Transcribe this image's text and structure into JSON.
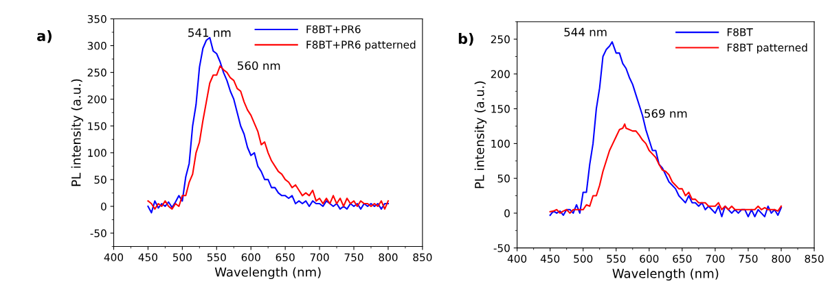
{
  "chart_data": [
    {
      "type": "line",
      "xlabel": "Wavelength (nm)",
      "ylabel": "PL intensity (a.u.)",
      "xlim": [
        400,
        850
      ],
      "ylim": [
        -75,
        350
      ],
      "xticks": [
        400,
        450,
        500,
        550,
        600,
        650,
        700,
        750,
        800,
        850
      ],
      "yticks": [
        -50,
        0,
        50,
        100,
        150,
        200,
        250,
        300,
        350
      ],
      "legend": "top right",
      "annotations": [
        "a)",
        "541 nm",
        "560 nm"
      ],
      "x": [
        450,
        455,
        460,
        465,
        470,
        475,
        480,
        485,
        490,
        495,
        500,
        505,
        510,
        515,
        520,
        525,
        530,
        535,
        540,
        545,
        550,
        555,
        560,
        565,
        570,
        575,
        580,
        585,
        590,
        595,
        600,
        605,
        610,
        615,
        620,
        625,
        630,
        635,
        640,
        645,
        650,
        655,
        660,
        665,
        670,
        675,
        680,
        685,
        690,
        695,
        700,
        705,
        710,
        715,
        720,
        725,
        730,
        735,
        740,
        745,
        750,
        755,
        760,
        765,
        770,
        775,
        780,
        785,
        790,
        795,
        800
      ],
      "series": [
        {
          "name": "F8BT+PR6",
          "color": "#0000ff",
          "values": [
            0,
            -12,
            10,
            -3,
            5,
            0,
            8,
            -2,
            8,
            20,
            10,
            55,
            80,
            150,
            190,
            260,
            295,
            310,
            315,
            290,
            285,
            270,
            250,
            235,
            215,
            200,
            175,
            150,
            135,
            110,
            95,
            100,
            75,
            65,
            50,
            50,
            35,
            35,
            25,
            20,
            20,
            15,
            20,
            5,
            10,
            5,
            10,
            0,
            10,
            5,
            5,
            0,
            10,
            5,
            0,
            5,
            -5,
            0,
            -5,
            5,
            0,
            5,
            -5,
            5,
            0,
            5,
            0,
            5,
            -5,
            5,
            5
          ]
        },
        {
          "name": "F8BT+PR6 patterned",
          "color": "#ff0000",
          "values": [
            10,
            5,
            -5,
            5,
            0,
            10,
            0,
            -5,
            5,
            0,
            20,
            20,
            45,
            60,
            100,
            120,
            160,
            195,
            230,
            245,
            245,
            262,
            255,
            250,
            240,
            235,
            220,
            215,
            195,
            180,
            170,
            155,
            140,
            115,
            120,
            100,
            85,
            75,
            65,
            60,
            50,
            45,
            35,
            40,
            30,
            20,
            25,
            20,
            30,
            10,
            15,
            5,
            15,
            5,
            20,
            5,
            15,
            0,
            15,
            5,
            10,
            0,
            10,
            5,
            5,
            0,
            5,
            0,
            10,
            -5,
            10
          ]
        }
      ]
    },
    {
      "type": "line",
      "xlabel": "Wavelength (nm)",
      "ylabel": "PL intensity (a.u.)",
      "xlim": [
        400,
        850
      ],
      "ylim": [
        -50,
        275
      ],
      "xticks": [
        400,
        450,
        500,
        550,
        600,
        650,
        700,
        750,
        800,
        850
      ],
      "yticks": [
        -50,
        0,
        50,
        100,
        150,
        200,
        250
      ],
      "legend": "top right",
      "annotations": [
        "b)",
        "544 nm",
        "569 nm"
      ],
      "series": [
        {
          "name": "F8BT",
          "color": "#0000ff",
          "x": [
            450,
            455,
            460,
            465,
            470,
            475,
            480,
            485,
            490,
            495,
            500,
            505,
            510,
            515,
            520,
            525,
            530,
            535,
            540,
            544,
            550,
            555,
            560,
            565,
            570,
            575,
            580,
            585,
            590,
            595,
            600,
            605,
            610,
            615,
            620,
            625,
            630,
            635,
            640,
            645,
            650,
            655,
            660,
            665,
            670,
            675,
            680,
            685,
            690,
            695,
            700,
            705,
            710,
            715,
            720,
            725,
            730,
            735,
            740,
            745,
            750,
            755,
            760,
            765,
            770,
            775,
            780,
            785,
            790,
            795,
            800
          ],
          "values": [
            -3,
            3,
            0,
            3,
            -3,
            5,
            5,
            0,
            12,
            0,
            30,
            30,
            70,
            100,
            150,
            180,
            225,
            235,
            240,
            246,
            230,
            230,
            215,
            208,
            195,
            185,
            170,
            155,
            140,
            120,
            105,
            90,
            90,
            70,
            65,
            55,
            45,
            40,
            35,
            25,
            20,
            15,
            25,
            15,
            15,
            10,
            15,
            5,
            10,
            5,
            0,
            10,
            -5,
            10,
            5,
            0,
            5,
            0,
            5,
            5,
            -5,
            5,
            -5,
            5,
            0,
            -5,
            10,
            0,
            5,
            -3,
            8
          ]
        },
        {
          "name": "F8BT patterned",
          "color": "#ff0000",
          "x": [
            450,
            455,
            460,
            465,
            470,
            475,
            480,
            485,
            490,
            495,
            500,
            505,
            510,
            515,
            520,
            525,
            530,
            535,
            540,
            545,
            550,
            555,
            560,
            563,
            565,
            570,
            575,
            580,
            585,
            590,
            595,
            600,
            605,
            610,
            615,
            620,
            625,
            630,
            635,
            640,
            645,
            650,
            655,
            660,
            665,
            670,
            675,
            680,
            685,
            690,
            695,
            700,
            705,
            710,
            715,
            720,
            725,
            730,
            735,
            740,
            745,
            750,
            755,
            760,
            765,
            770,
            775,
            780,
            785,
            790,
            795,
            800
          ],
          "values": [
            2,
            3,
            5,
            0,
            3,
            5,
            0,
            5,
            5,
            5,
            5,
            12,
            10,
            25,
            25,
            40,
            60,
            75,
            90,
            100,
            110,
            120,
            122,
            128,
            122,
            120,
            118,
            118,
            112,
            105,
            100,
            90,
            85,
            80,
            70,
            62,
            60,
            55,
            45,
            40,
            35,
            35,
            25,
            30,
            20,
            20,
            15,
            15,
            15,
            10,
            10,
            10,
            15,
            5,
            10,
            5,
            10,
            5,
            5,
            5,
            5,
            5,
            5,
            5,
            10,
            5,
            8,
            5,
            5,
            5,
            3,
            10
          ]
        }
      ]
    }
  ]
}
